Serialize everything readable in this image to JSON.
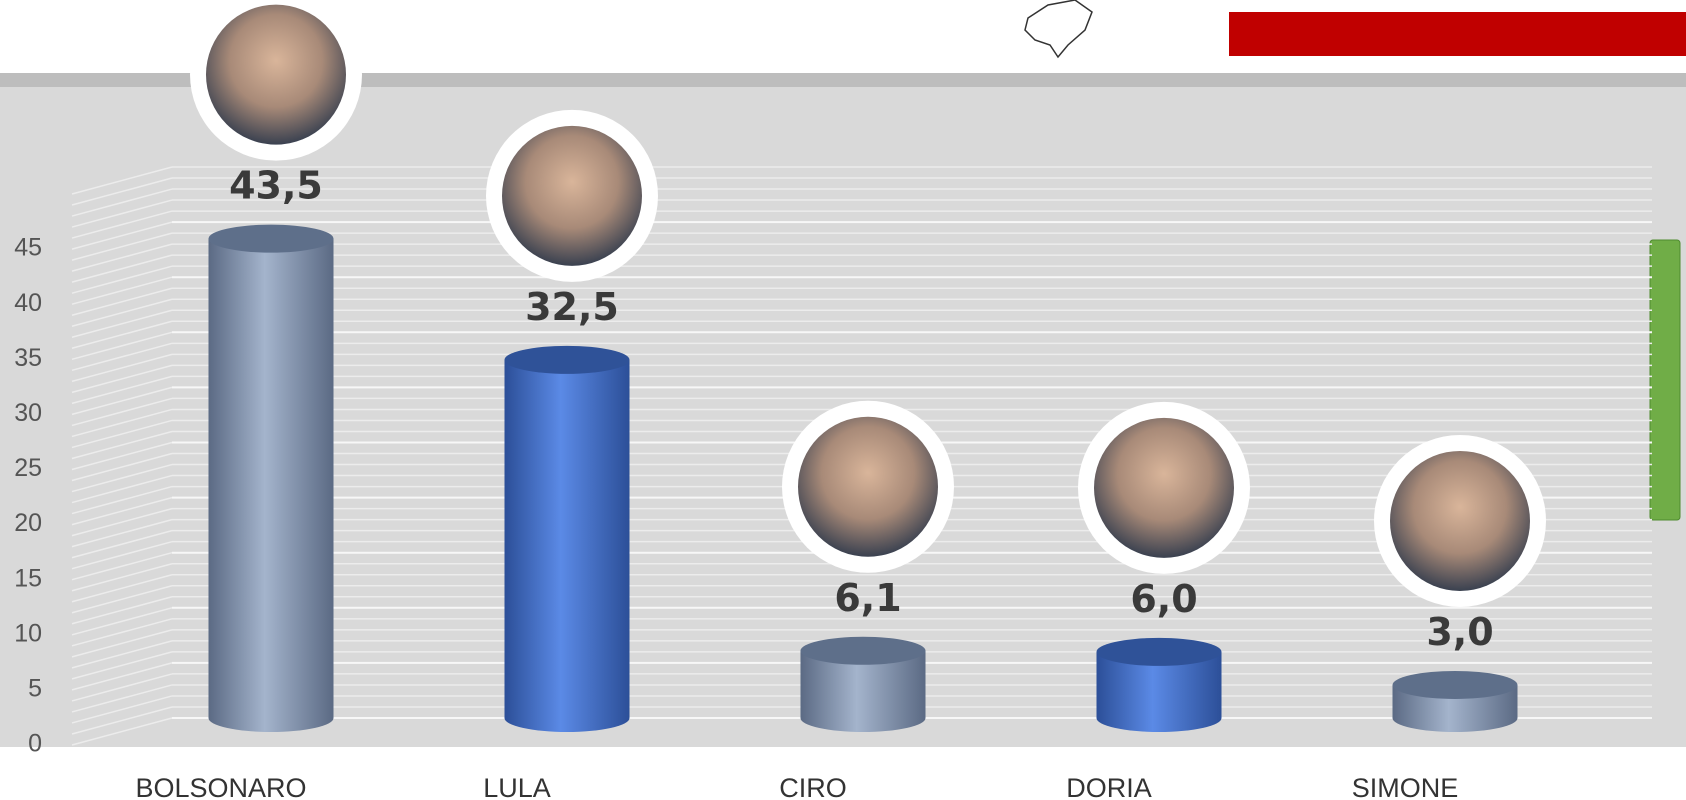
{
  "chart_data": {
    "type": "bar",
    "categories": [
      "BOLSONARO",
      "LULA",
      "CIRO",
      "DORIA",
      "SIMONE"
    ],
    "values": [
      43.5,
      32.5,
      6.1,
      6.0,
      3.0
    ],
    "value_labels": [
      "43,5",
      "32,5",
      "6,1",
      "6,0",
      "3,0"
    ],
    "colors": [
      "#8d9fba",
      "#4f7fd8",
      "#8d9fba",
      "#4f7fd8",
      "#8d9fba"
    ],
    "ylim": [
      0,
      50
    ],
    "yticks": [
      0,
      5,
      10,
      15,
      20,
      25,
      30,
      35,
      40,
      45
    ],
    "grid": true
  }
}
